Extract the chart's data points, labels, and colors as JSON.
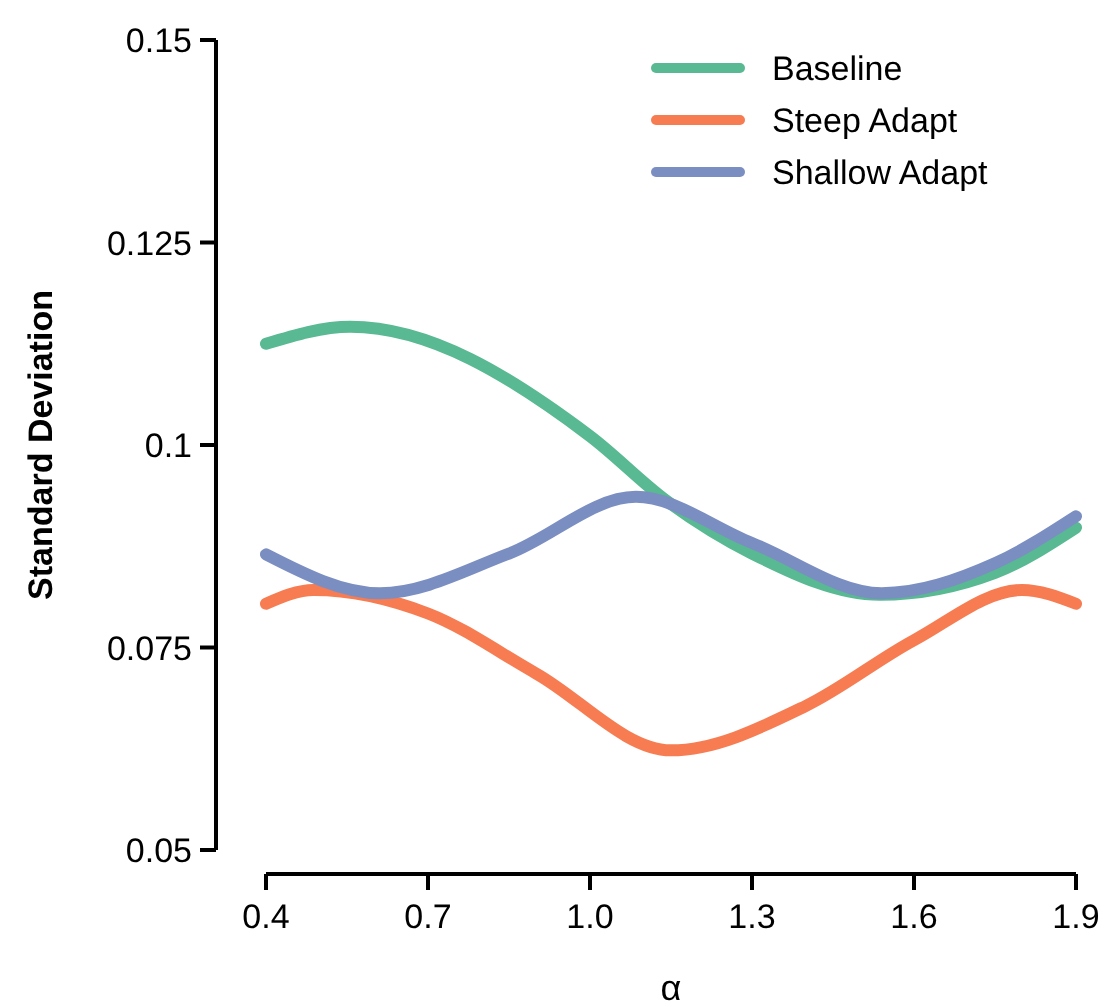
{
  "chart_data": {
    "type": "line",
    "xlabel": "α",
    "ylabel": "Standard Deviation",
    "xlim": [
      0.4,
      1.9
    ],
    "xticks": [
      0.4,
      0.7,
      {
        "value": 1.0,
        "label": "1.0"
      },
      1.3,
      1.6,
      1.9
    ],
    "ylim": [
      0.05,
      0.15
    ],
    "yticks": [
      0.05,
      0.075,
      0.1,
      0.125,
      0.15
    ],
    "grid": false,
    "legend": "top right",
    "marker": "none",
    "line_style": "solid",
    "series": [
      {
        "name": "Baseline",
        "color": "#58b992",
        "x": [
          0.4,
          0.556,
          1.0,
          1.14,
          1.3,
          1.537,
          1.75,
          1.9
        ],
        "values": [
          0.1125,
          0.1146,
          0.1011,
          0.0932,
          0.0866,
          0.0815,
          0.0842,
          0.0898
        ]
      },
      {
        "name": "Steep Adapt",
        "color": "#f77c52",
        "x": [
          0.4,
          0.488,
          0.7,
          0.9,
          1.15,
          1.4,
          1.6,
          1.8,
          1.9
        ],
        "values": [
          0.0804,
          0.0821,
          0.0792,
          0.0718,
          0.0623,
          0.0678,
          0.0759,
          0.0821,
          0.0804
        ]
      },
      {
        "name": "Shallow Adapt",
        "color": "#7b8ec2",
        "x": [
          0.4,
          0.611,
          0.85,
          1.085,
          1.3,
          1.54,
          1.75,
          1.9
        ],
        "values": [
          0.0865,
          0.0817,
          0.0866,
          0.0936,
          0.0879,
          0.0817,
          0.0854,
          0.0912
        ]
      }
    ]
  }
}
